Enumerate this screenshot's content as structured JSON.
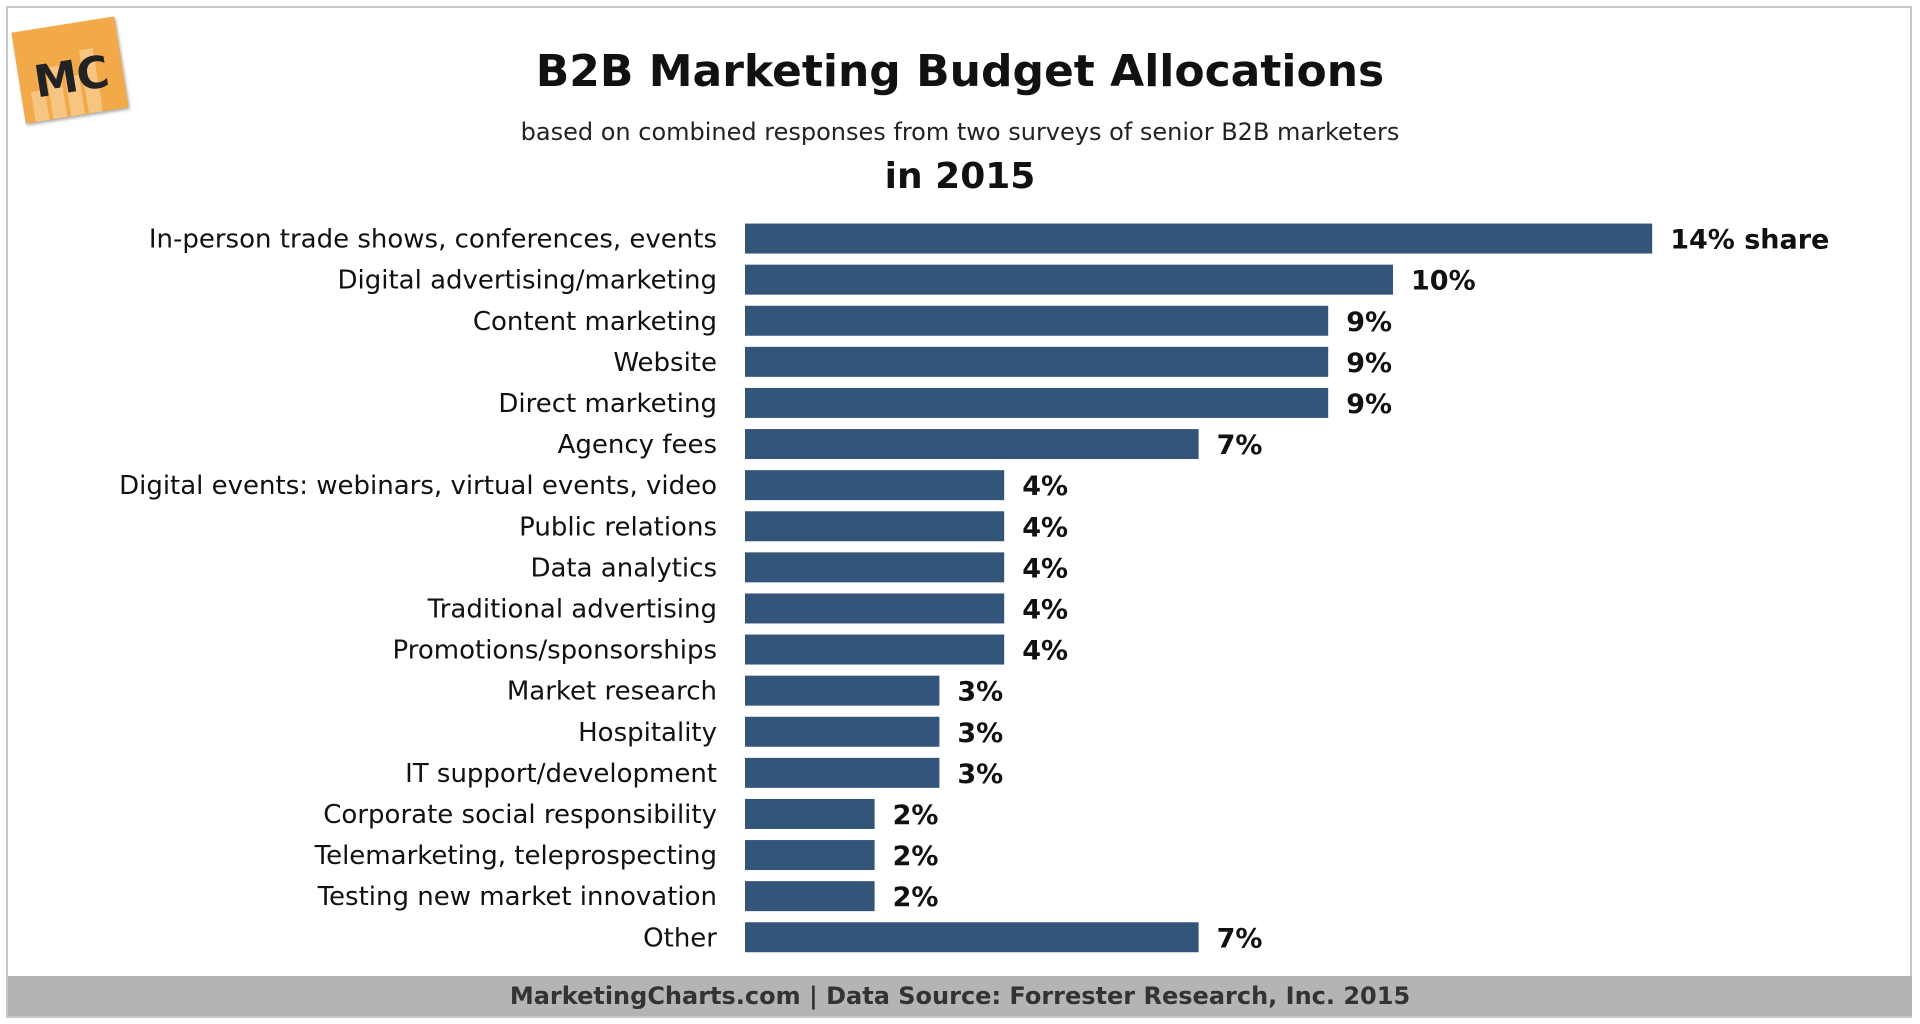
{
  "logo": {
    "text": "MC"
  },
  "header": {
    "title": "B2B Marketing Budget Allocations",
    "subtitle": "based on combined responses from two surveys of senior B2B marketers",
    "period": "in 2015"
  },
  "footer": {
    "text": "MarketingCharts.com | Data Source: Forrester Research, Inc. 2015"
  },
  "colors": {
    "bar": "#33557a",
    "logo": "#f2a94a",
    "footer": "#b4b4b4"
  },
  "chart_data": {
    "type": "bar",
    "orientation": "horizontal",
    "title": "B2B Marketing Budget Allocations",
    "subtitle": "based on combined responses from two surveys of senior B2B marketers",
    "categories": [
      "In-person trade shows, conferences, events",
      "Digital advertising/marketing",
      "Content marketing",
      "Website",
      "Direct marketing",
      "Agency fees",
      "Digital events: webinars, virtual events, video",
      "Public relations",
      "Data analytics",
      "Traditional advertising",
      "Promotions/sponsorships",
      "Market research",
      "Hospitality",
      "IT support/development",
      "Corporate social responsibility",
      "Telemarketing, teleprospecting",
      "Testing new market innovation",
      "Other"
    ],
    "values": [
      14,
      10,
      9,
      9,
      9,
      7,
      4,
      4,
      4,
      4,
      4,
      3,
      3,
      3,
      2,
      2,
      2,
      7
    ],
    "data_labels": [
      "14% share",
      "10%",
      "9%",
      "9%",
      "9%",
      "7%",
      "4%",
      "4%",
      "4%",
      "4%",
      "4%",
      "3%",
      "3%",
      "3%",
      "2%",
      "2%",
      "2%",
      "7%"
    ],
    "xlim": [
      0,
      14
    ],
    "grid": false,
    "legend": "none"
  }
}
